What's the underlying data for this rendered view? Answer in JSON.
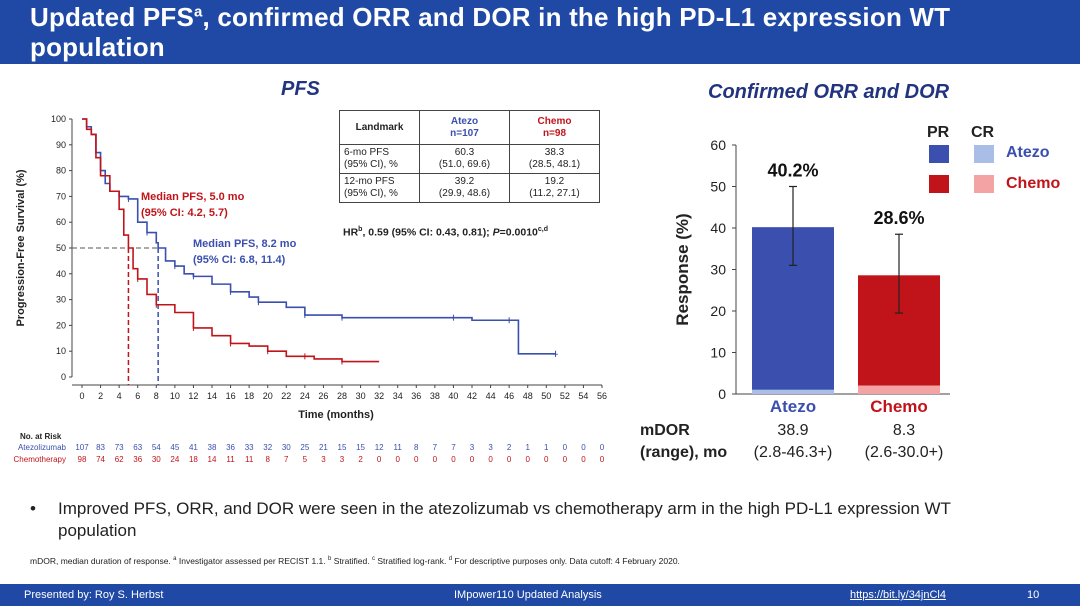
{
  "header": {
    "title": "Updated PFS",
    "title_sup": "a",
    "title_rest": ", confirmed ORR and DOR in the high PD-L1 expression WT population"
  },
  "pfs": {
    "title": "PFS"
  },
  "orr": {
    "title": "Confirmed ORR and DOR"
  },
  "landmark": {
    "head": [
      "Landmark",
      "Atezo\nn=107",
      "Chemo\nn=98"
    ],
    "atezo_head": "Atezo",
    "atezo_n": "n=107",
    "chemo_head": "Chemo",
    "chemo_n": "n=98",
    "rows": [
      {
        "label1": "6-mo PFS",
        "label2": "(95% CI), %",
        "atezo1": "60.3",
        "atezo2": "(51.0, 69.6)",
        "chemo1": "38.3",
        "chemo2": "(28.5, 48.1)"
      },
      {
        "label1": "12-mo PFS",
        "label2": "(95% CI), %",
        "atezo1": "39.2",
        "atezo2": "(29.9, 48.6)",
        "chemo1": "19.2",
        "chemo2": "(11.2, 27.1)"
      }
    ]
  },
  "hr": {
    "p1": "HR",
    "s1": "b",
    "p2": ", 0.59 (95% CI: 0.43, 0.81); ",
    "p3": "P",
    "p4": "=0.0010",
    "s2": "c,d"
  },
  "risk": {
    "title": "No. at Risk",
    "atezo_label": "Atezolizumab",
    "chemo_label": "Chemotherapy",
    "atezo": [
      "107",
      "83",
      "73",
      "63",
      "54",
      "45",
      "41",
      "38",
      "36",
      "33",
      "32",
      "30",
      "25",
      "21",
      "15",
      "15",
      "12",
      "11",
      "8",
      "7",
      "7",
      "3",
      "3",
      "2",
      "1",
      "1",
      "0",
      "0",
      "0"
    ],
    "chemo": [
      "98",
      "74",
      "62",
      "36",
      "30",
      "24",
      "18",
      "14",
      "11",
      "11",
      "8",
      "7",
      "5",
      "3",
      "3",
      "2",
      "0",
      "0",
      "0",
      "0",
      "0",
      "0",
      "0",
      "0",
      "0",
      "0",
      "0",
      "0",
      "0"
    ]
  },
  "mdor": {
    "label1": "mDOR",
    "label2": "(range), mo",
    "atezo_val": "38.9",
    "atezo_range": "(2.8-46.3+)",
    "chemo_val": "8.3",
    "chemo_range": "(2.6-30.0+)"
  },
  "legend": {
    "pr": "PR",
    "cr": "CR",
    "atezo": "Atezo",
    "chemo": "Chemo"
  },
  "bullet": {
    "symbol": "•",
    "text": "Improved PFS, ORR, and DOR were seen in the atezolizumab vs chemotherapy arm in the high PD-L1 expression WT population"
  },
  "footnote": {
    "a": "mDOR, median duration of response. ",
    "sa": "a",
    "b": " Investigator assessed per RECIST 1.1. ",
    "sb": "b",
    "c": " Stratified. ",
    "sc": "c",
    "d": " Stratified log-rank. ",
    "sd": "d",
    "e": " For descriptive purposes only. Data cutoff: 4 February 2020."
  },
  "footer": {
    "presenter": "Presented by: Roy S. Herbst",
    "study": "IMpower110 Updated Analysis",
    "link": "https://bit.ly/34jnCl4",
    "page": "10"
  },
  "colors": {
    "navy": "#1f49a5",
    "atezo": "#3a4fae",
    "atezo_cr": "#a9bde6",
    "chemo": "#c1141a",
    "chemo_cr": "#f3a3a3"
  },
  "chart_data": [
    {
      "type": "line",
      "title": "PFS",
      "xlabel": "Time (months)",
      "ylabel": "Progression-Free Survival (%)",
      "xlim": [
        0,
        56
      ],
      "ylim": [
        0,
        100
      ],
      "xticks": [
        "0",
        "2",
        "4",
        "6",
        "8",
        "10",
        "12",
        "14",
        "16",
        "18",
        "20",
        "22",
        "24",
        "26",
        "28",
        "30",
        "32",
        "34",
        "36",
        "38",
        "40",
        "42",
        "44",
        "46",
        "48",
        "50",
        "52",
        "54",
        "56"
      ],
      "yticks": [
        "0",
        "10",
        "20",
        "30",
        "40",
        "50",
        "60",
        "70",
        "80",
        "90",
        "100"
      ],
      "annotations": {
        "atezo": {
          "line1": "Median PFS, 8.2 mo",
          "line2": "(95% CI: 6.8, 11.4)",
          "median": 8.2
        },
        "chemo": {
          "line1": "Median PFS, 5.0 mo",
          "line2": "(95% CI: 4.2, 5.7)",
          "median": 5.0
        }
      },
      "series": [
        {
          "name": "Atezolizumab",
          "color": "#3a4fae",
          "points": [
            [
              0,
              100
            ],
            [
              0.5,
              97
            ],
            [
              1,
              94
            ],
            [
              1.5,
              87
            ],
            [
              2,
              80
            ],
            [
              2.5,
              75
            ],
            [
              3,
              72
            ],
            [
              4,
              70
            ],
            [
              5,
              69
            ],
            [
              6,
              60
            ],
            [
              7,
              56
            ],
            [
              8,
              52
            ],
            [
              8.2,
              50
            ],
            [
              9,
              45
            ],
            [
              10,
              43
            ],
            [
              11,
              40
            ],
            [
              12,
              39
            ],
            [
              14,
              36
            ],
            [
              16,
              33
            ],
            [
              18,
              31
            ],
            [
              19,
              29
            ],
            [
              22,
              27
            ],
            [
              24,
              24
            ],
            [
              26,
              24
            ],
            [
              28,
              23
            ],
            [
              30,
              23
            ],
            [
              40,
              23
            ],
            [
              42,
              22
            ],
            [
              46,
              22
            ],
            [
              47,
              9
            ],
            [
              51,
              9
            ]
          ]
        },
        {
          "name": "Chemotherapy",
          "color": "#c1141a",
          "points": [
            [
              0,
              100
            ],
            [
              0.5,
              96
            ],
            [
              1,
              94
            ],
            [
              1.5,
              85
            ],
            [
              2,
              78
            ],
            [
              3,
              72
            ],
            [
              4,
              65
            ],
            [
              4.5,
              55
            ],
            [
              5,
              50
            ],
            [
              5.5,
              42
            ],
            [
              6,
              38
            ],
            [
              7,
              32
            ],
            [
              8,
              28
            ],
            [
              10,
              25
            ],
            [
              12,
              19
            ],
            [
              14,
              16
            ],
            [
              16,
              13
            ],
            [
              18,
              12
            ],
            [
              20,
              10
            ],
            [
              22,
              8
            ],
            [
              24,
              8
            ],
            [
              25,
              7
            ],
            [
              28,
              6
            ],
            [
              32,
              6
            ]
          ]
        }
      ]
    },
    {
      "type": "bar",
      "title": "Confirmed ORR and DOR",
      "ylabel": "Response (%)",
      "ylim": [
        0,
        60
      ],
      "yticks": [
        "0",
        "10",
        "20",
        "30",
        "40",
        "50",
        "60"
      ],
      "categories": [
        "Atezo",
        "Chemo"
      ],
      "labels": [
        "40.2%",
        "28.6%"
      ],
      "series": [
        {
          "name": "PR",
          "values": [
            39.2,
            26.6
          ]
        },
        {
          "name": "CR",
          "values": [
            1.0,
            2.0
          ]
        }
      ],
      "totals": [
        40.2,
        28.6
      ],
      "ci": [
        [
          31,
          50
        ],
        [
          19.5,
          38.5
        ]
      ]
    }
  ]
}
